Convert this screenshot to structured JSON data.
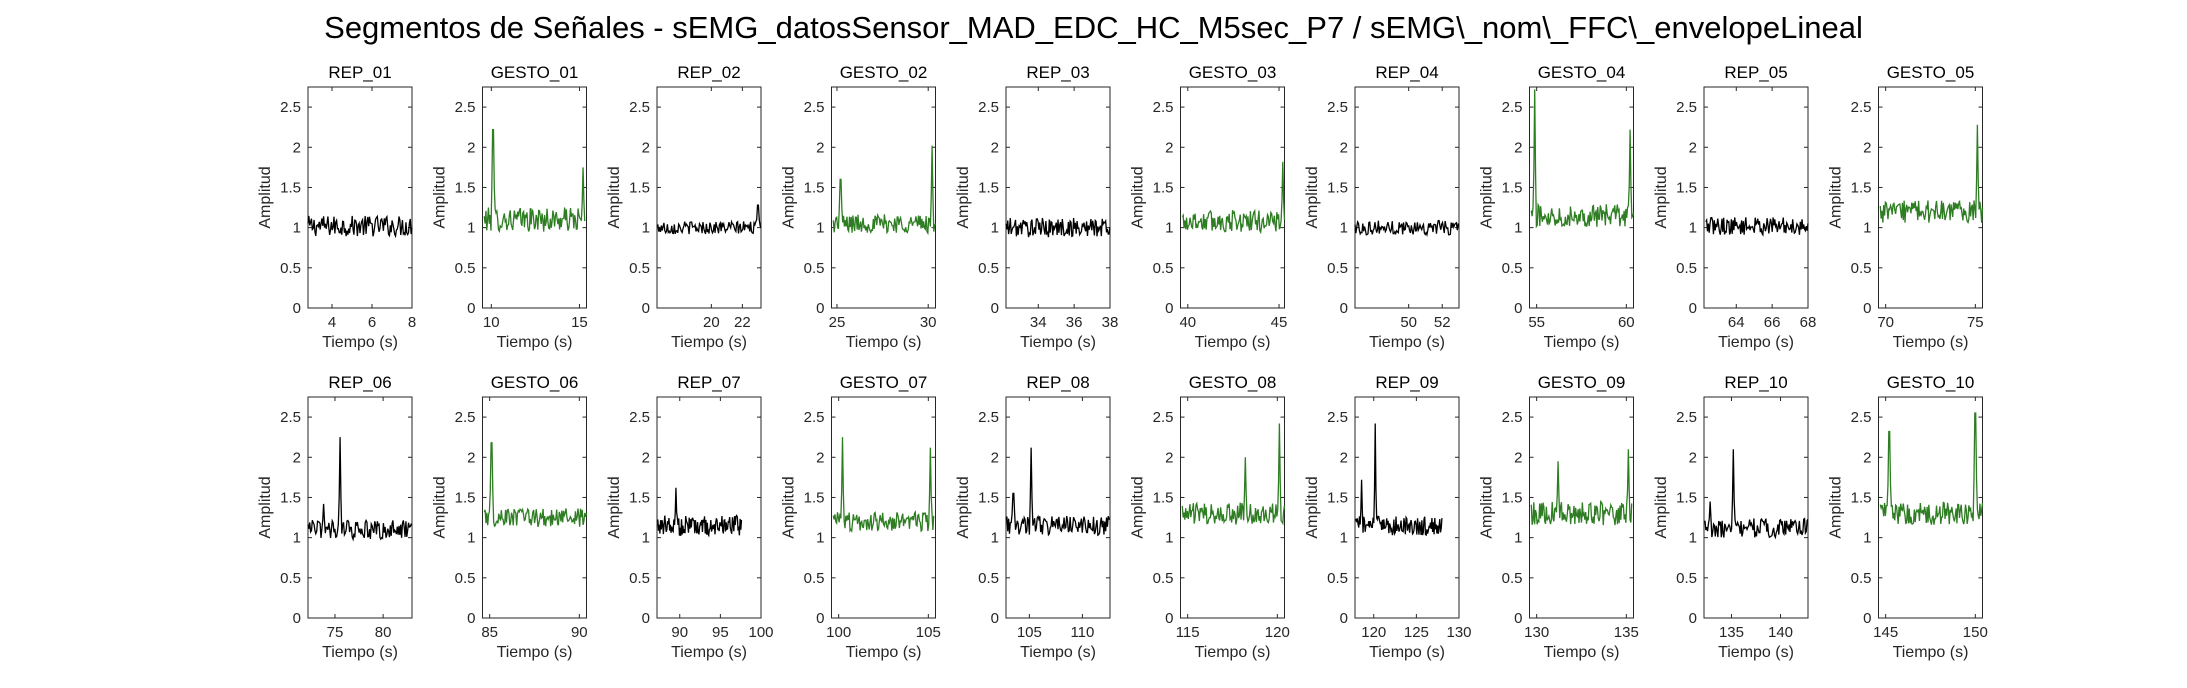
{
  "figure_title": "Segmentos de Señales - sEMG_datosSensor_MAD_EDC_HC_M5sec_P7 / sEMG\\_nom\\_FFC\\_envelopeLineal",
  "colors": {
    "rep": "#000000",
    "gesto": "#2e7d23"
  },
  "chart_data": [
    {
      "type": "line",
      "title": "REP_01",
      "xlabel": "Tiempo (s)",
      "ylabel": "Amplitud",
      "xlim": [
        2.8,
        8
      ],
      "ylim": [
        0,
        2.75
      ],
      "xticks": [
        4,
        6,
        8
      ],
      "yticks": [
        0,
        0.5,
        1,
        1.5,
        2,
        2.5
      ],
      "series": [
        {
          "color": "rep",
          "x": [
            2.8,
            8
          ],
          "y": [
            1.0,
            1.0
          ],
          "mean": 1.02,
          "amp": 0.13,
          "peaks": []
        }
      ]
    },
    {
      "type": "line",
      "title": "GESTO_01",
      "xlabel": "Tiempo (s)",
      "ylabel": "Amplitud",
      "xlim": [
        9.5,
        15.4
      ],
      "ylim": [
        0,
        2.75
      ],
      "xticks": [
        10,
        15
      ],
      "yticks": [
        0,
        0.5,
        1,
        1.5,
        2,
        2.5
      ],
      "series": [
        {
          "color": "gesto",
          "x": [
            9.6,
            15.3
          ],
          "mean": 1.1,
          "amp": 0.15,
          "peaks": [
            [
              10.1,
              2.22
            ],
            [
              15.2,
              1.75
            ]
          ]
        }
      ]
    },
    {
      "type": "line",
      "title": "REP_02",
      "xlabel": "Tiempo (s)",
      "ylabel": "Amplitud",
      "xlim": [
        16.5,
        23.2
      ],
      "ylim": [
        0,
        2.75
      ],
      "xticks": [
        20,
        22
      ],
      "yticks": [
        0,
        0.5,
        1,
        1.5,
        2,
        2.5
      ],
      "series": [
        {
          "color": "rep",
          "x": [
            16.5,
            23.2
          ],
          "mean": 1.0,
          "amp": 0.08,
          "peaks": [
            [
              23.0,
              1.28
            ]
          ]
        }
      ]
    },
    {
      "type": "line",
      "title": "GESTO_02",
      "xlabel": "Tiempo (s)",
      "ylabel": "Amplitud",
      "xlim": [
        24.7,
        30.4
      ],
      "ylim": [
        0,
        2.75
      ],
      "xticks": [
        25,
        30
      ],
      "yticks": [
        0,
        0.5,
        1,
        1.5,
        2,
        2.5
      ],
      "series": [
        {
          "color": "gesto",
          "x": [
            24.8,
            30.4
          ],
          "mean": 1.05,
          "amp": 0.12,
          "peaks": [
            [
              25.2,
              1.6
            ],
            [
              30.2,
              2.02
            ]
          ]
        }
      ]
    },
    {
      "type": "line",
      "title": "REP_03",
      "xlabel": "Tiempo (s)",
      "ylabel": "Amplitud",
      "xlim": [
        32.2,
        38
      ],
      "ylim": [
        0,
        2.75
      ],
      "xticks": [
        34,
        36,
        38
      ],
      "yticks": [
        0,
        0.5,
        1,
        1.5,
        2,
        2.5
      ],
      "series": [
        {
          "color": "rep",
          "x": [
            32.2,
            38
          ],
          "mean": 1.0,
          "amp": 0.12,
          "peaks": []
        }
      ]
    },
    {
      "type": "line",
      "title": "GESTO_03",
      "xlabel": "Tiempo (s)",
      "ylabel": "Amplitud",
      "xlim": [
        39.6,
        45.3
      ],
      "ylim": [
        0,
        2.75
      ],
      "xticks": [
        40,
        45
      ],
      "yticks": [
        0,
        0.5,
        1,
        1.5,
        2,
        2.5
      ],
      "series": [
        {
          "color": "gesto",
          "x": [
            39.7,
            45.3
          ],
          "mean": 1.08,
          "amp": 0.14,
          "peaks": [
            [
              45.2,
              1.82
            ]
          ]
        }
      ]
    },
    {
      "type": "line",
      "title": "REP_04",
      "xlabel": "Tiempo (s)",
      "ylabel": "Amplitud",
      "xlim": [
        46.8,
        53
      ],
      "ylim": [
        0,
        2.75
      ],
      "xticks": [
        50,
        52
      ],
      "yticks": [
        0,
        0.5,
        1,
        1.5,
        2,
        2.5
      ],
      "series": [
        {
          "color": "rep",
          "x": [
            46.8,
            53
          ],
          "mean": 1.0,
          "amp": 0.09,
          "peaks": []
        }
      ]
    },
    {
      "type": "line",
      "title": "GESTO_04",
      "xlabel": "Tiempo (s)",
      "ylabel": "Amplitud",
      "xlim": [
        54.6,
        60.4
      ],
      "ylim": [
        0,
        2.75
      ],
      "xticks": [
        55,
        60
      ],
      "yticks": [
        0,
        0.5,
        1,
        1.5,
        2,
        2.5
      ],
      "series": [
        {
          "color": "gesto",
          "x": [
            54.7,
            60.4
          ],
          "mean": 1.15,
          "amp": 0.14,
          "peaks": [
            [
              54.9,
              2.72
            ],
            [
              60.2,
              2.22
            ]
          ]
        }
      ]
    },
    {
      "type": "line",
      "title": "REP_05",
      "xlabel": "Tiempo (s)",
      "ylabel": "Amplitud",
      "xlim": [
        62.2,
        68
      ],
      "ylim": [
        0,
        2.75
      ],
      "xticks": [
        64,
        66,
        68
      ],
      "yticks": [
        0,
        0.5,
        1,
        1.5,
        2,
        2.5
      ],
      "series": [
        {
          "color": "rep",
          "x": [
            62.3,
            68
          ],
          "mean": 1.02,
          "amp": 0.11,
          "peaks": []
        }
      ]
    },
    {
      "type": "line",
      "title": "GESTO_05",
      "xlabel": "Tiempo (s)",
      "ylabel": "Amplitud",
      "xlim": [
        69.6,
        75.4
      ],
      "ylim": [
        0,
        2.75
      ],
      "xticks": [
        70,
        75
      ],
      "yticks": [
        0,
        0.5,
        1,
        1.5,
        2,
        2.5
      ],
      "series": [
        {
          "color": "gesto",
          "x": [
            69.7,
            75.4
          ],
          "mean": 1.2,
          "amp": 0.14,
          "peaks": [
            [
              75.1,
              2.28
            ]
          ]
        }
      ]
    },
    {
      "type": "line",
      "title": "REP_06",
      "xlabel": "Tiempo (s)",
      "ylabel": "Amplitud",
      "xlim": [
        72.2,
        83
      ],
      "ylim": [
        0,
        2.75
      ],
      "xticks": [
        75,
        80
      ],
      "yticks": [
        0,
        0.5,
        1,
        1.5,
        2,
        2.5
      ],
      "series": [
        {
          "color": "rep",
          "x": [
            72.2,
            83
          ],
          "mean": 1.1,
          "amp": 0.12,
          "peaks": [
            [
              73.8,
              1.42
            ],
            [
              75.5,
              2.25
            ]
          ]
        }
      ]
    },
    {
      "type": "line",
      "title": "GESTO_06",
      "xlabel": "Tiempo (s)",
      "ylabel": "Amplitud",
      "xlim": [
        84.6,
        90.4
      ],
      "ylim": [
        0,
        2.75
      ],
      "xticks": [
        85,
        90
      ],
      "yticks": [
        0,
        0.5,
        1,
        1.5,
        2,
        2.5
      ],
      "series": [
        {
          "color": "gesto",
          "x": [
            84.7,
            90.4
          ],
          "mean": 1.25,
          "amp": 0.12,
          "peaks": [
            [
              85.1,
              2.18
            ]
          ]
        }
      ]
    },
    {
      "type": "line",
      "title": "REP_07",
      "xlabel": "Tiempo (s)",
      "ylabel": "Amplitud",
      "xlim": [
        87.2,
        100
      ],
      "ylim": [
        0,
        2.75
      ],
      "xticks": [
        90,
        95,
        100
      ],
      "yticks": [
        0,
        0.5,
        1,
        1.5,
        2,
        2.5
      ],
      "series": [
        {
          "color": "rep",
          "x": [
            87.3,
            97.6
          ],
          "mean": 1.15,
          "amp": 0.13,
          "peaks": [
            [
              89.5,
              1.62
            ]
          ]
        }
      ]
    },
    {
      "type": "line",
      "title": "GESTO_07",
      "xlabel": "Tiempo (s)",
      "ylabel": "Amplitud",
      "xlim": [
        99.6,
        105.4
      ],
      "ylim": [
        0,
        2.75
      ],
      "xticks": [
        100,
        105
      ],
      "yticks": [
        0,
        0.5,
        1,
        1.5,
        2,
        2.5
      ],
      "series": [
        {
          "color": "gesto",
          "x": [
            99.7,
            105.3
          ],
          "mean": 1.2,
          "amp": 0.12,
          "peaks": [
            [
              100.2,
              2.25
            ],
            [
              105.1,
              2.12
            ]
          ]
        }
      ]
    },
    {
      "type": "line",
      "title": "REP_08",
      "xlabel": "Tiempo (s)",
      "ylabel": "Amplitud",
      "xlim": [
        102.8,
        112.6
      ],
      "ylim": [
        0,
        2.75
      ],
      "xticks": [
        105,
        110
      ],
      "yticks": [
        0,
        0.5,
        1,
        1.5,
        2,
        2.5
      ],
      "series": [
        {
          "color": "rep",
          "x": [
            102.8,
            112.6
          ],
          "mean": 1.15,
          "amp": 0.12,
          "peaks": [
            [
              103.5,
              1.55
            ],
            [
              105.2,
              2.12
            ]
          ]
        }
      ]
    },
    {
      "type": "line",
      "title": "GESTO_08",
      "xlabel": "Tiempo (s)",
      "ylabel": "Amplitud",
      "xlim": [
        114.6,
        120.4
      ],
      "ylim": [
        0,
        2.75
      ],
      "xticks": [
        115,
        120
      ],
      "yticks": [
        0,
        0.5,
        1,
        1.5,
        2,
        2.5
      ],
      "series": [
        {
          "color": "gesto",
          "x": [
            114.7,
            120.4
          ],
          "mean": 1.3,
          "amp": 0.14,
          "peaks": [
            [
              118.2,
              2.0
            ],
            [
              120.1,
              2.42
            ]
          ]
        }
      ]
    },
    {
      "type": "line",
      "title": "REP_09",
      "xlabel": "Tiempo (s)",
      "ylabel": "Amplitud",
      "xlim": [
        117.8,
        130
      ],
      "ylim": [
        0,
        2.75
      ],
      "xticks": [
        120,
        125,
        130
      ],
      "yticks": [
        0,
        0.5,
        1,
        1.5,
        2,
        2.5
      ],
      "series": [
        {
          "color": "rep",
          "x": [
            117.9,
            128
          ],
          "mean": 1.15,
          "amp": 0.12,
          "peaks": [
            [
              118.6,
              1.72
            ],
            [
              120.2,
              2.42
            ]
          ]
        }
      ]
    },
    {
      "type": "line",
      "title": "GESTO_09",
      "xlabel": "Tiempo (s)",
      "ylabel": "Amplitud",
      "xlim": [
        129.6,
        135.4
      ],
      "ylim": [
        0,
        2.75
      ],
      "xticks": [
        130,
        135
      ],
      "yticks": [
        0,
        0.5,
        1,
        1.5,
        2,
        2.5
      ],
      "series": [
        {
          "color": "gesto",
          "x": [
            129.7,
            135.3
          ],
          "mean": 1.3,
          "amp": 0.15,
          "peaks": [
            [
              131.2,
              1.95
            ],
            [
              135.1,
              2.1
            ]
          ]
        }
      ]
    },
    {
      "type": "line",
      "title": "REP_10",
      "xlabel": "Tiempo (s)",
      "ylabel": "Amplitud",
      "xlim": [
        132.2,
        142.8
      ],
      "ylim": [
        0,
        2.75
      ],
      "xticks": [
        135,
        140
      ],
      "yticks": [
        0,
        0.5,
        1,
        1.5,
        2,
        2.5
      ],
      "series": [
        {
          "color": "rep",
          "x": [
            132.3,
            142.8
          ],
          "mean": 1.12,
          "amp": 0.12,
          "peaks": [
            [
              132.8,
              1.45
            ],
            [
              135.2,
              2.1
            ]
          ]
        }
      ]
    },
    {
      "type": "line",
      "title": "GESTO_10",
      "xlabel": "Tiempo (s)",
      "ylabel": "Amplitud",
      "xlim": [
        144.6,
        150.4
      ],
      "ylim": [
        0,
        2.75
      ],
      "xticks": [
        145,
        150
      ],
      "yticks": [
        0,
        0.5,
        1,
        1.5,
        2,
        2.5
      ],
      "series": [
        {
          "color": "gesto",
          "x": [
            144.7,
            150.4
          ],
          "mean": 1.3,
          "amp": 0.14,
          "peaks": [
            [
              145.2,
              2.32
            ],
            [
              150.0,
              2.55
            ]
          ]
        }
      ]
    }
  ]
}
